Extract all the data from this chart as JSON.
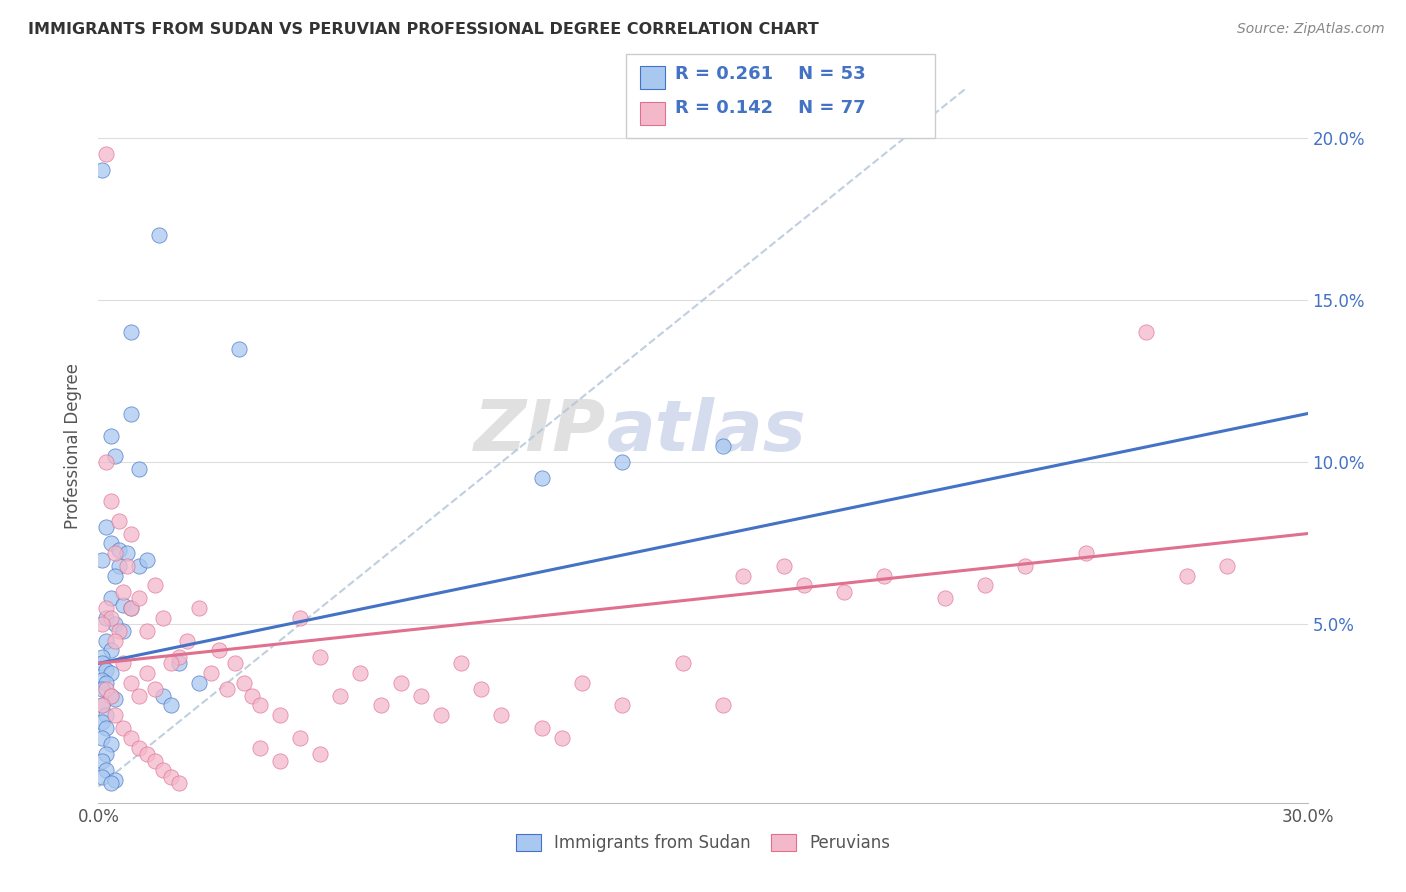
{
  "title": "IMMIGRANTS FROM SUDAN VS PERUVIAN PROFESSIONAL DEGREE CORRELATION CHART",
  "source": "Source: ZipAtlas.com",
  "ylabel": "Professional Degree",
  "xlim": [
    0.0,
    0.3
  ],
  "ylim": [
    -0.005,
    0.215
  ],
  "color_blue": "#A8C8F0",
  "color_pink": "#F4B8CB",
  "color_line_blue": "#4472C4",
  "color_line_pink": "#E07090",
  "color_line_grey": "#B0C4D8",
  "color_r_value": "#4472C4",
  "watermark_zip": "ZIP",
  "watermark_atlas": "atlas",
  "sudan_points": [
    [
      0.001,
      0.19
    ],
    [
      0.015,
      0.17
    ],
    [
      0.008,
      0.14
    ],
    [
      0.035,
      0.135
    ],
    [
      0.008,
      0.115
    ],
    [
      0.003,
      0.108
    ],
    [
      0.004,
      0.102
    ],
    [
      0.01,
      0.098
    ],
    [
      0.002,
      0.08
    ],
    [
      0.003,
      0.075
    ],
    [
      0.005,
      0.073
    ],
    [
      0.001,
      0.07
    ],
    [
      0.005,
      0.068
    ],
    [
      0.004,
      0.065
    ],
    [
      0.007,
      0.072
    ],
    [
      0.003,
      0.058
    ],
    [
      0.006,
      0.056
    ],
    [
      0.008,
      0.055
    ],
    [
      0.01,
      0.068
    ],
    [
      0.012,
      0.07
    ],
    [
      0.002,
      0.052
    ],
    [
      0.004,
      0.05
    ],
    [
      0.006,
      0.048
    ],
    [
      0.002,
      0.045
    ],
    [
      0.003,
      0.042
    ],
    [
      0.001,
      0.04
    ],
    [
      0.001,
      0.038
    ],
    [
      0.002,
      0.036
    ],
    [
      0.003,
      0.035
    ],
    [
      0.001,
      0.033
    ],
    [
      0.002,
      0.032
    ],
    [
      0.001,
      0.03
    ],
    [
      0.003,
      0.028
    ],
    [
      0.004,
      0.027
    ],
    [
      0.001,
      0.025
    ],
    [
      0.002,
      0.022
    ],
    [
      0.001,
      0.02
    ],
    [
      0.002,
      0.018
    ],
    [
      0.001,
      0.015
    ],
    [
      0.003,
      0.013
    ],
    [
      0.002,
      0.01
    ],
    [
      0.001,
      0.008
    ],
    [
      0.002,
      0.005
    ],
    [
      0.001,
      0.003
    ],
    [
      0.004,
      0.002
    ],
    [
      0.003,
      0.001
    ],
    [
      0.02,
      0.038
    ],
    [
      0.025,
      0.032
    ],
    [
      0.016,
      0.028
    ],
    [
      0.018,
      0.025
    ],
    [
      0.13,
      0.1
    ],
    [
      0.155,
      0.105
    ],
    [
      0.11,
      0.095
    ]
  ],
  "peru_points": [
    [
      0.002,
      0.195
    ],
    [
      0.002,
      0.1
    ],
    [
      0.003,
      0.088
    ],
    [
      0.005,
      0.082
    ],
    [
      0.008,
      0.078
    ],
    [
      0.004,
      0.072
    ],
    [
      0.007,
      0.068
    ],
    [
      0.006,
      0.06
    ],
    [
      0.002,
      0.055
    ],
    [
      0.003,
      0.052
    ],
    [
      0.001,
      0.05
    ],
    [
      0.005,
      0.048
    ],
    [
      0.004,
      0.045
    ],
    [
      0.008,
      0.055
    ],
    [
      0.01,
      0.058
    ],
    [
      0.012,
      0.048
    ],
    [
      0.014,
      0.062
    ],
    [
      0.016,
      0.052
    ],
    [
      0.02,
      0.04
    ],
    [
      0.018,
      0.038
    ],
    [
      0.022,
      0.045
    ],
    [
      0.025,
      0.055
    ],
    [
      0.028,
      0.035
    ],
    [
      0.03,
      0.042
    ],
    [
      0.032,
      0.03
    ],
    [
      0.034,
      0.038
    ],
    [
      0.036,
      0.032
    ],
    [
      0.038,
      0.028
    ],
    [
      0.006,
      0.038
    ],
    [
      0.008,
      0.032
    ],
    [
      0.01,
      0.028
    ],
    [
      0.012,
      0.035
    ],
    [
      0.014,
      0.03
    ],
    [
      0.002,
      0.03
    ],
    [
      0.003,
      0.028
    ],
    [
      0.001,
      0.025
    ],
    [
      0.004,
      0.022
    ],
    [
      0.006,
      0.018
    ],
    [
      0.008,
      0.015
    ],
    [
      0.01,
      0.012
    ],
    [
      0.012,
      0.01
    ],
    [
      0.014,
      0.008
    ],
    [
      0.016,
      0.005
    ],
    [
      0.018,
      0.003
    ],
    [
      0.02,
      0.001
    ],
    [
      0.04,
      0.025
    ],
    [
      0.045,
      0.022
    ],
    [
      0.05,
      0.052
    ],
    [
      0.055,
      0.04
    ],
    [
      0.06,
      0.028
    ],
    [
      0.065,
      0.035
    ],
    [
      0.07,
      0.025
    ],
    [
      0.075,
      0.032
    ],
    [
      0.08,
      0.028
    ],
    [
      0.085,
      0.022
    ],
    [
      0.09,
      0.038
    ],
    [
      0.095,
      0.03
    ],
    [
      0.1,
      0.022
    ],
    [
      0.11,
      0.018
    ],
    [
      0.115,
      0.015
    ],
    [
      0.12,
      0.032
    ],
    [
      0.13,
      0.025
    ],
    [
      0.145,
      0.038
    ],
    [
      0.155,
      0.025
    ],
    [
      0.16,
      0.065
    ],
    [
      0.17,
      0.068
    ],
    [
      0.175,
      0.062
    ],
    [
      0.185,
      0.06
    ],
    [
      0.195,
      0.065
    ],
    [
      0.21,
      0.058
    ],
    [
      0.22,
      0.062
    ],
    [
      0.23,
      0.068
    ],
    [
      0.245,
      0.072
    ],
    [
      0.26,
      0.14
    ],
    [
      0.27,
      0.065
    ],
    [
      0.28,
      0.068
    ],
    [
      0.04,
      0.012
    ],
    [
      0.045,
      0.008
    ],
    [
      0.05,
      0.015
    ],
    [
      0.055,
      0.01
    ]
  ],
  "sudan_line": [
    0.0,
    0.3,
    0.038,
    0.115
  ],
  "peru_line": [
    0.0,
    0.3,
    0.038,
    0.078
  ],
  "diag_line": [
    0.0,
    0.215,
    0.0,
    0.215
  ]
}
